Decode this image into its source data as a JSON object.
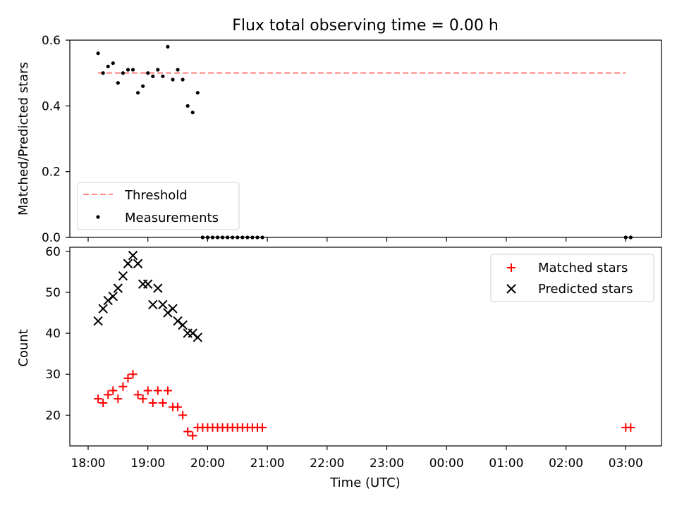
{
  "chart_data": [
    {
      "type": "scatter",
      "title": "Flux total observing time = 0.00 h",
      "ylabel": "Matched/Predicted stars",
      "xlabel": "",
      "ylim": [
        0,
        0.6
      ],
      "yticks": [
        "0.0",
        "0.2",
        "0.4",
        "0.6"
      ],
      "legend_position": "bottom-left",
      "threshold": {
        "name": "Threshold",
        "value": 0.5,
        "x_start": "18:10",
        "x_end": "03:00",
        "color": "#ff7f7f"
      },
      "series": [
        {
          "name": "Measurements",
          "color": "#000000",
          "x": [
            "18:10",
            "18:15",
            "18:20",
            "18:25",
            "18:30",
            "18:35",
            "18:40",
            "18:45",
            "18:50",
            "18:55",
            "19:00",
            "19:05",
            "19:10",
            "19:15",
            "19:20",
            "19:25",
            "19:30",
            "19:35",
            "19:40",
            "19:45",
            "19:50",
            "19:55",
            "20:00",
            "20:05",
            "20:10",
            "20:15",
            "20:20",
            "20:25",
            "20:30",
            "20:35",
            "20:40",
            "20:45",
            "20:50",
            "20:55",
            "03:00",
            "03:05"
          ],
          "y": [
            0.56,
            0.5,
            0.52,
            0.53,
            0.47,
            0.5,
            0.51,
            0.51,
            0.44,
            0.46,
            0.5,
            0.49,
            0.51,
            0.49,
            0.58,
            0.48,
            0.51,
            0.48,
            0.4,
            0.38,
            0.44,
            0,
            0,
            0,
            0,
            0,
            0,
            0,
            0,
            0,
            0,
            0,
            0,
            0,
            0,
            0
          ]
        }
      ]
    },
    {
      "type": "scatter",
      "title": "",
      "ylabel": "Count",
      "xlabel": "Time (UTC)",
      "ylim": [
        12.5,
        61
      ],
      "yticks": [
        "20",
        "30",
        "40",
        "50",
        "60"
      ],
      "xticks": [
        "18:00",
        "19:00",
        "20:00",
        "21:00",
        "22:00",
        "23:00",
        "00:00",
        "01:00",
        "02:00",
        "03:00"
      ],
      "legend_position": "top-right",
      "series": [
        {
          "name": "Matched stars",
          "marker": "plus",
          "color": "#ff0000",
          "x": [
            "18:10",
            "18:15",
            "18:20",
            "18:25",
            "18:30",
            "18:35",
            "18:40",
            "18:45",
            "18:50",
            "18:55",
            "19:00",
            "19:05",
            "19:10",
            "19:15",
            "19:20",
            "19:25",
            "19:30",
            "19:35",
            "19:40",
            "19:45",
            "19:50",
            "19:55",
            "20:00",
            "20:05",
            "20:10",
            "20:15",
            "20:20",
            "20:25",
            "20:30",
            "20:35",
            "20:40",
            "20:45",
            "20:50",
            "20:55",
            "03:00",
            "03:05"
          ],
          "y": [
            24,
            23,
            25,
            26,
            24,
            27,
            29,
            30,
            25,
            24,
            26,
            23,
            26,
            23,
            26,
            22,
            22,
            20,
            16,
            15,
            17,
            17,
            17,
            17,
            17,
            17,
            17,
            17,
            17,
            17,
            17,
            17,
            17,
            17,
            17,
            17
          ]
        },
        {
          "name": "Predicted stars",
          "marker": "x",
          "color": "#000000",
          "x": [
            "18:10",
            "18:15",
            "18:20",
            "18:25",
            "18:30",
            "18:35",
            "18:40",
            "18:45",
            "18:50",
            "18:55",
            "19:00",
            "19:05",
            "19:10",
            "19:15",
            "19:20",
            "19:25",
            "19:30",
            "19:35",
            "19:40",
            "19:45",
            "19:50"
          ],
          "y": [
            43,
            46,
            48,
            49,
            51,
            54,
            57,
            59,
            57,
            52,
            52,
            47,
            51,
            47,
            45,
            46,
            43,
            42,
            40,
            40,
            39
          ]
        }
      ]
    }
  ]
}
